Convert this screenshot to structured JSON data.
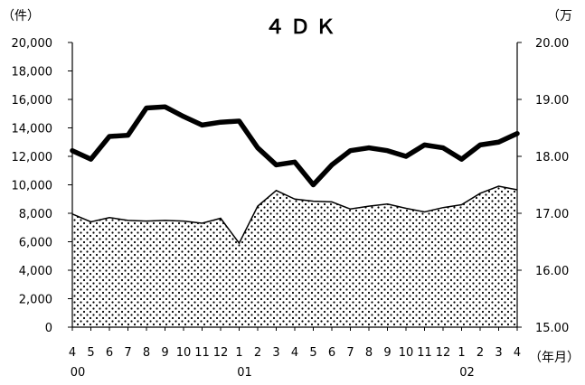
{
  "chart_data": {
    "type": "area+line",
    "title": "４ＤＫ",
    "y_left_unit": "（件）",
    "y_right_unit": "（万",
    "x_unit": "（年月）",
    "categories": [
      "4",
      "5",
      "6",
      "7",
      "8",
      "9",
      "10",
      "11",
      "12",
      "1",
      "2",
      "3",
      "4",
      "5",
      "6",
      "7",
      "8",
      "9",
      "10",
      "11",
      "12",
      "1",
      "2",
      "3",
      "4"
    ],
    "year_labels": [
      {
        "index": 0,
        "label": "00"
      },
      {
        "index": 9,
        "label": "01"
      },
      {
        "index": 21,
        "label": "02"
      }
    ],
    "y_left_ticks": [
      "0",
      "2,000",
      "4,000",
      "6,000",
      "8,000",
      "10,000",
      "12,000",
      "14,000",
      "16,000",
      "18,000",
      "20,000"
    ],
    "y_right_ticks": [
      "15.00",
      "16.00",
      "17.00",
      "18.00",
      "19.00",
      "20.00"
    ],
    "ylim_left": [
      0,
      20000
    ],
    "ylim_right": [
      15,
      20
    ],
    "series": [
      {
        "type": "area",
        "axis": "left",
        "pattern": "dotted",
        "values": [
          7950,
          7400,
          7700,
          7500,
          7450,
          7500,
          7450,
          7300,
          7650,
          5900,
          8500,
          9600,
          9000,
          8850,
          8800,
          8300,
          8500,
          8650,
          8350,
          8100,
          8400,
          8600,
          9400,
          9900,
          9650
        ]
      },
      {
        "type": "line",
        "axis": "right",
        "values": [
          18.1,
          17.95,
          18.35,
          18.37,
          18.85,
          18.87,
          18.7,
          18.55,
          18.6,
          18.62,
          18.15,
          17.85,
          17.9,
          17.5,
          17.85,
          18.1,
          18.15,
          18.1,
          18.0,
          18.2,
          18.15,
          17.95,
          18.2,
          18.25,
          18.4
        ]
      }
    ]
  }
}
